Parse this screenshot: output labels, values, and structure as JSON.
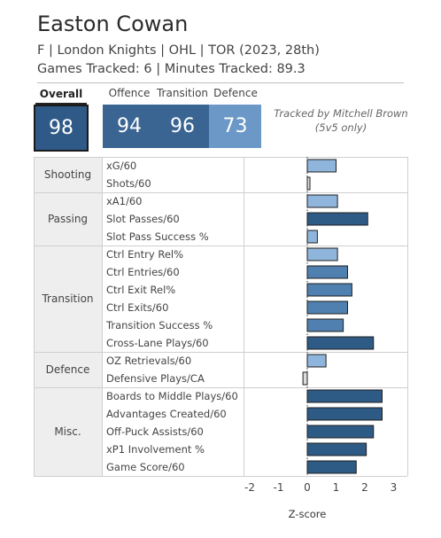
{
  "player": {
    "name": "Easton Cowan",
    "bio": "F | London Knights | OHL | TOR (2023, 28th)",
    "games_line": "Games Tracked: 6 | Minutes Tracked: 89.3"
  },
  "scores": {
    "overall_label": "Overall",
    "offence_label": "Offence",
    "transition_label": "Transition",
    "defence_label": "Defence",
    "overall": "98",
    "offence": "94",
    "transition": "96",
    "defence": "73"
  },
  "note": {
    "line1": "Tracked by Mitchell Brown",
    "line2": "(5v5 only)"
  },
  "colors": {
    "dark_bar": "#2e5a86",
    "mid_bar": "#5080b0",
    "light_bar": "#8fb5dc",
    "neutral_bar": "#dcdcdc",
    "category_bg": "#eeeeee"
  },
  "chart_data": {
    "type": "bar",
    "orientation": "horizontal",
    "xlabel": "Z-score",
    "xlim": [
      -2.3,
      3
    ],
    "x_ticks": [
      "-2",
      "-1",
      "0",
      "1",
      "2",
      "3"
    ],
    "x_tick_values": [
      -2,
      -1,
      0,
      1,
      2,
      3
    ],
    "zero_line": "dotted",
    "groups": [
      {
        "name": "Shooting",
        "metrics": [
          {
            "label": "xG/60",
            "value": 1.0,
            "shade": "light_bar"
          },
          {
            "label": "Shots/60",
            "value": 0.05,
            "shade": "neutral_bar"
          }
        ]
      },
      {
        "name": "Passing",
        "metrics": [
          {
            "label": "xA1/60",
            "value": 1.05,
            "shade": "light_bar"
          },
          {
            "label": "Slot Passes/60",
            "value": 2.1,
            "shade": "dark_bar"
          },
          {
            "label": "Slot Pass Success %",
            "value": 0.35,
            "shade": "light_bar"
          }
        ]
      },
      {
        "name": "Transition",
        "metrics": [
          {
            "label": "Ctrl Entry Rel%",
            "value": 1.05,
            "shade": "light_bar"
          },
          {
            "label": "Ctrl Entries/60",
            "value": 1.4,
            "shade": "mid_bar"
          },
          {
            "label": "Ctrl Exit Rel%",
            "value": 1.55,
            "shade": "mid_bar"
          },
          {
            "label": "Ctrl Exits/60",
            "value": 1.4,
            "shade": "mid_bar"
          },
          {
            "label": "Transition Success %",
            "value": 1.25,
            "shade": "mid_bar"
          },
          {
            "label": "Cross-Lane Plays/60",
            "value": 2.3,
            "shade": "dark_bar"
          }
        ]
      },
      {
        "name": "Defence",
        "metrics": [
          {
            "label": "OZ Retrievals/60",
            "value": 0.65,
            "shade": "light_bar"
          },
          {
            "label": "Defensive Plays/CA",
            "value": -0.15,
            "shade": "neutral_bar"
          }
        ]
      },
      {
        "name": "Misc.",
        "metrics": [
          {
            "label": "Boards to Middle Plays/60",
            "value": 2.6,
            "shade": "dark_bar"
          },
          {
            "label": "Advantages Created/60",
            "value": 2.6,
            "shade": "dark_bar"
          },
          {
            "label": "Off-Puck Assists/60",
            "value": 2.3,
            "shade": "dark_bar"
          },
          {
            "label": "xP1 Involvement %",
            "value": 2.05,
            "shade": "dark_bar"
          },
          {
            "label": "Game Score/60",
            "value": 1.7,
            "shade": "dark_bar"
          }
        ]
      }
    ]
  }
}
